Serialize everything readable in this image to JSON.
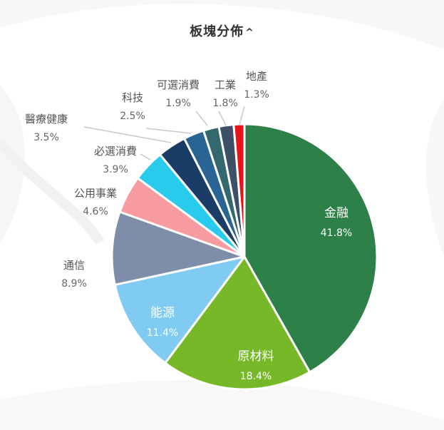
{
  "title": "板塊分佈",
  "title_toggle": "^",
  "chart_data": {
    "type": "pie",
    "title": "板塊分佈",
    "unit": "%",
    "grid": false,
    "legend": "none",
    "slices": [
      {
        "label": "金融",
        "value": 41.8,
        "display": "41.8%",
        "color": "#2e8049",
        "label_style": "inside"
      },
      {
        "label": "原材料",
        "value": 18.4,
        "display": "18.4%",
        "color": "#77b828",
        "label_style": "inside"
      },
      {
        "label": "能源",
        "value": 11.4,
        "display": "11.4%",
        "color": "#7fcbf1",
        "label_style": "inside"
      },
      {
        "label": "通信",
        "value": 8.9,
        "display": "8.9%",
        "color": "#7f8ea8",
        "label_style": "outside"
      },
      {
        "label": "公用事業",
        "value": 4.6,
        "display": "4.6%",
        "color": "#f79ba0",
        "label_style": "outside"
      },
      {
        "label": "必選消費",
        "value": 3.9,
        "display": "3.9%",
        "color": "#28cbeb",
        "label_style": "outside"
      },
      {
        "label": "醫療健康",
        "value": 3.5,
        "display": "3.5%",
        "color": "#1b3c66",
        "label_style": "outside"
      },
      {
        "label": "科技",
        "value": 2.5,
        "display": "2.5%",
        "color": "#2a6495",
        "label_style": "outside"
      },
      {
        "label": "可選消費",
        "value": 1.9,
        "display": "1.9%",
        "color": "#32686e",
        "label_style": "outside"
      },
      {
        "label": "工業",
        "value": 1.8,
        "display": "1.8%",
        "color": "#3d5068",
        "label_style": "outside"
      },
      {
        "label": "地產",
        "value": 1.3,
        "display": "1.3%",
        "color": "#e6151c",
        "label_style": "outside"
      }
    ]
  }
}
